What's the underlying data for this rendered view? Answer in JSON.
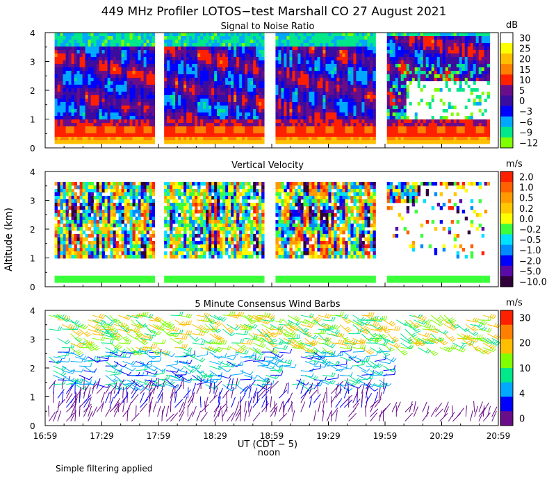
{
  "title": "449 MHz Profiler LOTOS−test Marshall CO 27 August 2021",
  "footer_note": "Simple filtering applied",
  "y_axis_label": "Altitude (km)",
  "x_axis": {
    "label": "UT  (CDT − 5)",
    "sublabel": "noon",
    "range_min": [
      0,
      240
    ],
    "ticks": [
      {
        "t": 0,
        "label": "16:59"
      },
      {
        "t": 30,
        "label": "17:29"
      },
      {
        "t": 60,
        "label": "17:59"
      },
      {
        "t": 90,
        "label": "18:29"
      },
      {
        "t": 120,
        "label": "18:59"
      },
      {
        "t": 150,
        "label": "19:29"
      },
      {
        "t": 180,
        "label": "19:59"
      },
      {
        "t": 210,
        "label": "20:29"
      },
      {
        "t": 240,
        "label": "20:59"
      }
    ]
  },
  "chart_data": [
    {
      "type": "heatmap",
      "title": "Signal to Noise Ratio",
      "ylabel": "Altitude (km)",
      "ylim": [
        0,
        4
      ],
      "yticks": [
        "0",
        "1",
        "2",
        "3",
        "4"
      ],
      "colorbar": {
        "unit": "dB",
        "labels": [
          "30",
          "25",
          "20",
          "15",
          "10",
          "5",
          "0",
          "−3",
          "−6",
          "−9",
          "−12"
        ],
        "colors": [
          "#ffffff",
          "#ffff00",
          "#ffbf00",
          "#ff7f00",
          "#ff2000",
          "#6a0d8a",
          "#3a0ca0",
          "#0000ff",
          "#00a8ff",
          "#00e88a",
          "#80ff00"
        ]
      },
      "time_segments_min": [
        [
          5,
          58
        ],
        [
          63,
          116
        ],
        [
          122,
          175
        ],
        [
          181,
          235
        ]
      ],
      "approx_layers": [
        {
          "alt_km": [
            0.15,
            0.3
          ],
          "value_db": 15
        },
        {
          "alt_km": [
            0.3,
            0.8
          ],
          "value_db": 10
        },
        {
          "alt_km": [
            0.8,
            1.2
          ],
          "value_db": 5
        },
        {
          "alt_km": [
            1.2,
            3.5
          ],
          "value_db": 0
        },
        {
          "alt_km": [
            3.5,
            4.0
          ],
          "value_db": -6
        }
      ]
    },
    {
      "type": "heatmap",
      "title": "Vertical Velocity",
      "ylabel": "Altitude (km)",
      "ylim": [
        0,
        4
      ],
      "yticks": [
        "0",
        "1",
        "2",
        "3",
        "4"
      ],
      "colorbar": {
        "unit": "m/s",
        "labels": [
          "2.0",
          "1.0",
          "0.5",
          "0.2",
          "0.0",
          "−0.2",
          "−0.5",
          "−1.0",
          "−2.0",
          "−5.0",
          "−10.0"
        ],
        "colors": [
          "#ff2000",
          "#ff6000",
          "#ff9a00",
          "#ffc800",
          "#ffff00",
          "#3cff3c",
          "#00e0ff",
          "#008cff",
          "#0000ff",
          "#5a0aa6",
          "#30003a"
        ]
      },
      "time_segments_min": [
        [
          5,
          58
        ],
        [
          63,
          116
        ],
        [
          122,
          175
        ],
        [
          181,
          235
        ]
      ],
      "approx_layers": [
        {
          "alt_km": [
            0.15,
            0.4
          ],
          "value_ms": -0.2
        },
        {
          "alt_km": [
            1.1,
            3.6
          ],
          "value_ms": 0.5
        }
      ]
    },
    {
      "type": "scatter",
      "title": "5 Minute Consensus Wind Barbs",
      "ylabel": "Altitude (km)",
      "ylim": [
        0,
        4
      ],
      "yticks": [
        "0",
        "1",
        "2",
        "3",
        "4"
      ],
      "colorbar": {
        "unit": "m/s",
        "labels": [
          "30",
          "20",
          "10",
          "4",
          "0"
        ],
        "colors": [
          "#ff2000",
          "#ff7f00",
          "#ffbf00",
          "#80ff00",
          "#00e88a",
          "#00a8ff",
          "#0000ff",
          "#6a0d8a"
        ]
      },
      "approx_speed_by_altitude": [
        {
          "alt_km": 3.2,
          "speed_ms": 18
        },
        {
          "alt_km": 2.0,
          "speed_ms": 10
        },
        {
          "alt_km": 1.0,
          "speed_ms": 4
        },
        {
          "alt_km": 0.2,
          "speed_ms": 2
        }
      ]
    }
  ]
}
